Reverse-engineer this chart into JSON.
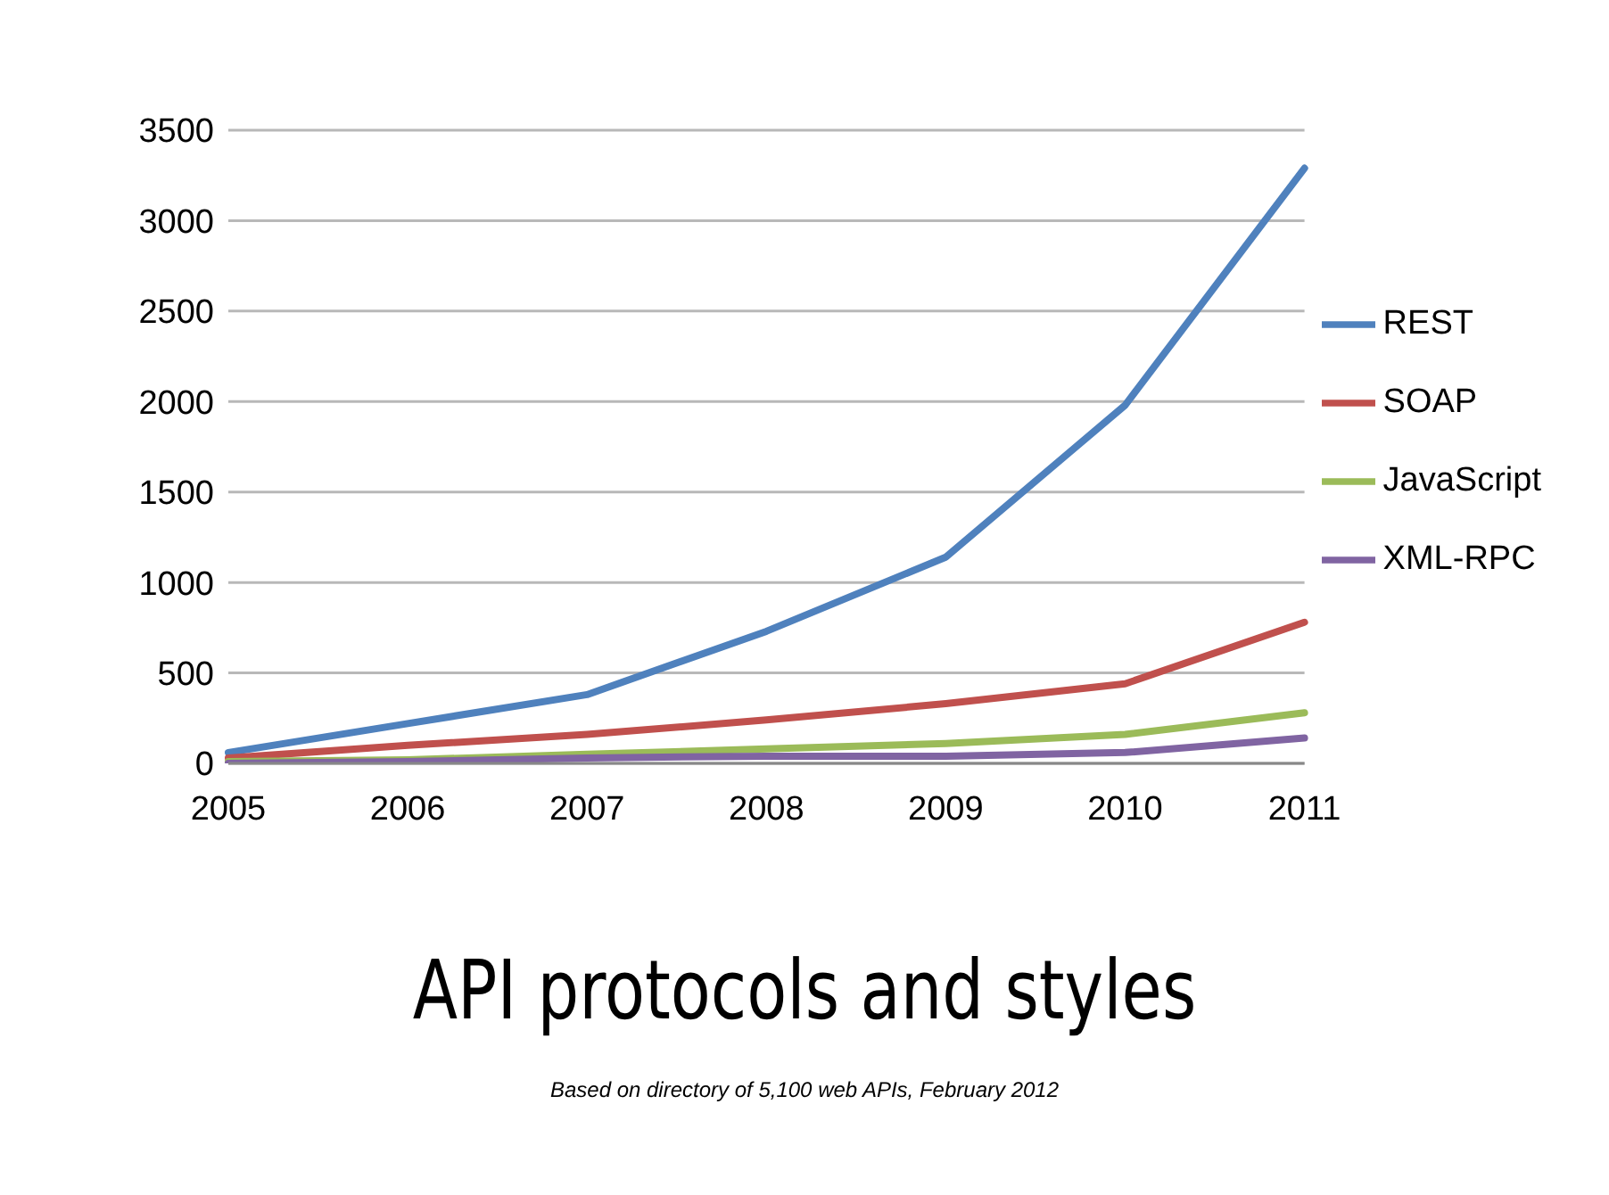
{
  "chart_data": {
    "type": "line",
    "title": "API protocols and styles",
    "annotations": [
      "Based on directory of 5,100 web APIs, February 2012"
    ],
    "categories": [
      "2005",
      "2006",
      "2007",
      "2008",
      "2009",
      "2010",
      "2011"
    ],
    "series": [
      {
        "name": "REST",
        "color": "#4f81bd",
        "values": [
          60,
          220,
          380,
          730,
          1140,
          1980,
          3290
        ]
      },
      {
        "name": "SOAP",
        "color": "#c0504d",
        "values": [
          30,
          100,
          160,
          240,
          330,
          440,
          780
        ]
      },
      {
        "name": "JavaScript",
        "color": "#9bbb59",
        "values": [
          10,
          20,
          50,
          80,
          110,
          160,
          280
        ]
      },
      {
        "name": "XML-RPC",
        "color": "#8064a2",
        "values": [
          0,
          10,
          30,
          40,
          40,
          60,
          140
        ]
      }
    ],
    "ylim": [
      0,
      3500
    ],
    "yticks": [
      0,
      500,
      1000,
      1500,
      2000,
      2500,
      3000,
      3500
    ],
    "grid": "y",
    "legend": "right",
    "marker": "none",
    "line_style": "solid"
  }
}
